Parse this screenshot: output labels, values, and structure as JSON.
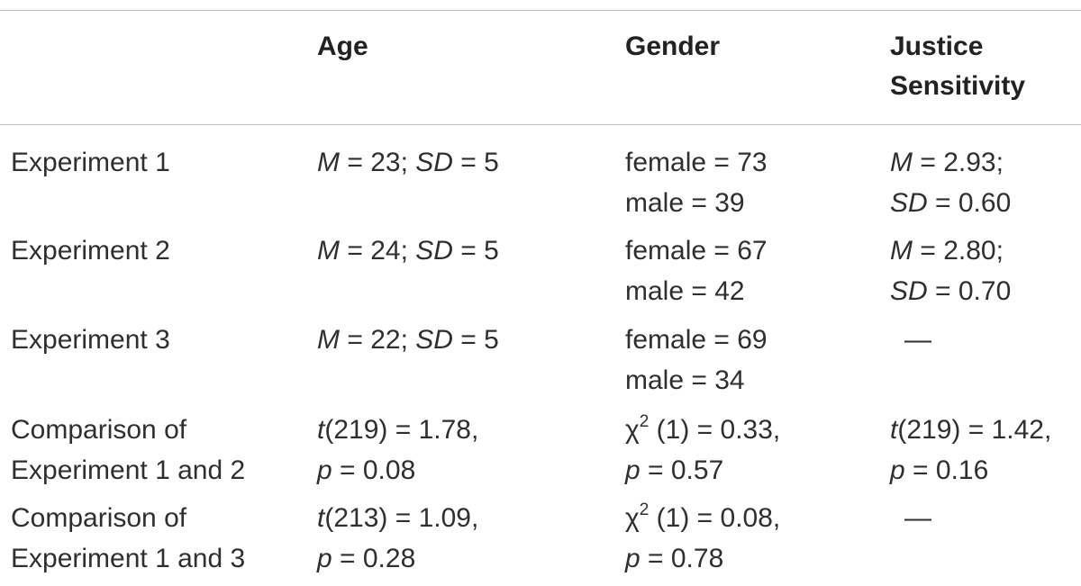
{
  "table": {
    "headers": [
      "",
      "Age",
      "Gender",
      "Justice Sensitivity"
    ],
    "header_lines": {
      "age": "Age",
      "gender": "Gender",
      "justice_line1": "Justice",
      "justice_line2": "Sensitivity"
    },
    "rows": [
      {
        "label": [
          "Experiment 1"
        ],
        "age": [
          {
            "v1": "M",
            "v2": "SD",
            "val1": "23",
            "val2": "5"
          }
        ],
        "gender": [
          "female = 73",
          "male = 39"
        ],
        "justice": [
          {
            "var": "M",
            "val": " = 2.93;"
          },
          {
            "var": "SD",
            "val": " = 0.60"
          }
        ]
      },
      {
        "label": [
          "Experiment 2"
        ],
        "age": [
          {
            "v1": "M",
            "v2": "SD",
            "val1": "24",
            "val2": "5"
          }
        ],
        "gender": [
          "female = 67",
          "male = 42"
        ],
        "justice": [
          {
            "var": "M",
            "val": " = 2.80;"
          },
          {
            "var": "SD",
            "val": " = 0.70"
          }
        ]
      },
      {
        "label": [
          "Experiment 3"
        ],
        "age": [
          {
            "v1": "M",
            "v2": "SD",
            "val1": "22",
            "val2": "5"
          }
        ],
        "gender": [
          "female = 69",
          "male = 34"
        ],
        "justice": "—"
      },
      {
        "label": [
          "Comparison of",
          "Experiment 1 and 2"
        ],
        "age": [
          {
            "var": "t",
            "val": "(219) = 1.78,"
          },
          {
            "var": "p",
            "val": " = 0.08"
          }
        ],
        "gender": [
          {
            "var": "χ",
            "sup": "2",
            "val": " (1) = 0.33,"
          },
          {
            "var": "p",
            "val": " = 0.57"
          }
        ],
        "justice": [
          {
            "var": "t",
            "val": "(219) = 1.42,"
          },
          {
            "var": "p",
            "val": " = 0.16"
          }
        ]
      },
      {
        "label": [
          "Comparison of",
          "Experiment 1 and 3"
        ],
        "age": [
          {
            "var": "t",
            "val": "(213) = 1.09,"
          },
          {
            "var": "p",
            "val": " = 0.28"
          }
        ],
        "gender": [
          {
            "var": "χ",
            "sup": "2",
            "val": " (1) = 0.08,"
          },
          {
            "var": "p",
            "val": " = 0.78"
          }
        ],
        "justice": "—"
      }
    ],
    "sep": " = ",
    "semicolon": "; "
  }
}
